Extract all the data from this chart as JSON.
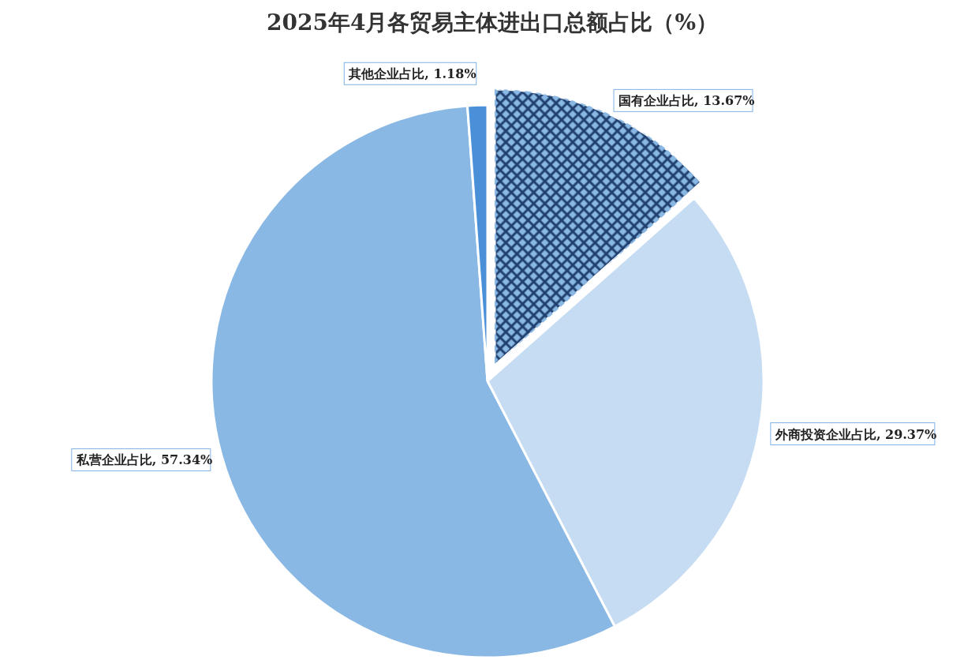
{
  "chart_data": {
    "type": "pie",
    "title": "2025年4月各贸易主体进出口总额占比（%）",
    "categories": [
      "国有企业占比",
      "外商投资企业占比",
      "私营企业占比",
      "其他企业占比"
    ],
    "values": [
      13.67,
      29.37,
      57.34,
      1.18
    ],
    "value_labels": [
      "13.67%",
      "29.37%",
      "57.34%",
      "1.18%"
    ],
    "colors": [
      "#1f3f6e",
      "#c5dcf2",
      "#8ab8e4",
      "#4a90d9"
    ]
  }
}
